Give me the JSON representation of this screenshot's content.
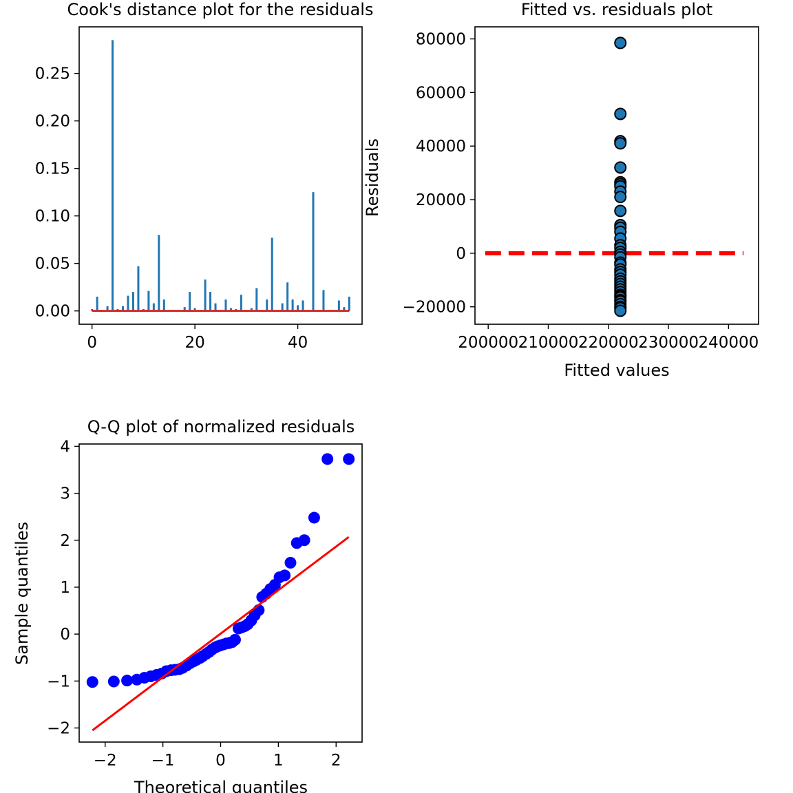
{
  "chart_data": [
    {
      "type": "bar",
      "title": "Cook's distance plot for the residuals",
      "xlabel": "",
      "ylabel": "",
      "xlim": [
        -2.5,
        52.5
      ],
      "ylim": [
        -0.014,
        0.299
      ],
      "xticks": [
        0,
        20,
        40
      ],
      "yticks": [
        0.0,
        0.05,
        0.1,
        0.15,
        0.2,
        0.25
      ],
      "ytick_labels": [
        "0.00",
        "0.05",
        "0.10",
        "0.15",
        "0.20",
        "0.25"
      ],
      "bar_color": "#1f77b4",
      "baseline_color": "#d62728",
      "x": [
        0,
        1,
        2,
        3,
        4,
        5,
        6,
        7,
        8,
        9,
        10,
        11,
        12,
        13,
        14,
        15,
        16,
        17,
        18,
        19,
        20,
        21,
        22,
        23,
        24,
        25,
        26,
        27,
        28,
        29,
        30,
        31,
        32,
        33,
        34,
        35,
        36,
        37,
        38,
        39,
        40,
        41,
        42,
        43,
        44,
        45,
        46,
        47,
        48,
        49,
        50
      ],
      "values": [
        0.002,
        0.015,
        0.001,
        0.005,
        0.285,
        0.002,
        0.005,
        0.016,
        0.02,
        0.047,
        0.002,
        0.021,
        0.008,
        0.08,
        0.012,
        0.001,
        0.001,
        0.001,
        0.004,
        0.02,
        0.003,
        0.001,
        0.033,
        0.02,
        0.008,
        0.001,
        0.012,
        0.003,
        0.002,
        0.017,
        0.001,
        0.003,
        0.024,
        0.001,
        0.012,
        0.077,
        0.001,
        0.008,
        0.03,
        0.012,
        0.006,
        0.011,
        0.001,
        0.125,
        0.001,
        0.022,
        0.001,
        0.001,
        0.011,
        0.004,
        0.015
      ]
    },
    {
      "type": "scatter",
      "title": "Fitted vs. residuals plot",
      "xlabel": "Fitted values",
      "ylabel": "Residuals",
      "xlim": [
        199500,
        24500
      ],
      "ylim": [
        -26500,
        84500
      ],
      "xticks": [
        200000,
        210000,
        220000,
        230000,
        240000
      ],
      "xtick_labels": [
        "200000",
        "210000",
        "220000",
        "230000",
        "240000"
      ],
      "yticks": [
        -20000,
        0,
        20000,
        40000,
        60000,
        80000
      ],
      "ytick_labels": [
        "−20000",
        "0",
        "20000",
        "40000",
        "60000",
        "80000"
      ],
      "point_color": "#1f77b4",
      "reference_line": {
        "y": 0,
        "x_from": 199500,
        "x_to": 242500,
        "color": "#ff0000",
        "style": "dashed"
      },
      "x_value": 222000,
      "y": [
        78500,
        52000,
        41800,
        41000,
        32000,
        26500,
        25800,
        25000,
        23000,
        21000,
        15800,
        10500,
        9500,
        8000,
        5500,
        3000,
        2000,
        500,
        -500,
        -1500,
        -3500,
        -4200,
        -6000,
        -7000,
        -8000,
        -9500,
        -10500,
        -11500,
        -12500,
        -13500,
        -14500,
        -15500,
        -16000,
        -16500,
        -17500,
        -18000,
        -19000,
        -20000,
        -20500,
        -21500
      ]
    },
    {
      "type": "scatter",
      "title": "Q-Q plot of normalized residuals",
      "xlabel": "Theoretical quantiles",
      "ylabel": "Sample quantiles",
      "xlim": [
        -2.45,
        2.45
      ],
      "ylim": [
        -2.3,
        4.05
      ],
      "xticks": [
        -2,
        -1,
        0,
        1,
        2
      ],
      "xtick_labels": [
        "−2",
        "−1",
        "0",
        "1",
        "2"
      ],
      "yticks": [
        -2,
        -1,
        0,
        1,
        2,
        3,
        4
      ],
      "ytick_labels": [
        "−2",
        "−1",
        "0",
        "1",
        "2",
        "3",
        "4"
      ],
      "point_color": "#0000ff",
      "fit_line": {
        "x": [
          -2.22,
          2.22
        ],
        "y": [
          -2.05,
          2.07
        ],
        "color": "#ff0000"
      },
      "x": [
        -2.22,
        -1.85,
        -1.62,
        -1.45,
        -1.32,
        -1.21,
        -1.11,
        -1.02,
        -0.94,
        -0.86,
        -0.79,
        -0.72,
        -0.66,
        -0.59,
        -0.53,
        -0.47,
        -0.42,
        -0.36,
        -0.31,
        -0.25,
        -0.2,
        -0.15,
        -0.1,
        -0.05,
        0.0,
        0.05,
        0.1,
        0.15,
        0.2,
        0.25,
        0.31,
        0.36,
        0.42,
        0.47,
        0.53,
        0.59,
        0.66,
        0.72,
        0.79,
        0.86,
        0.94,
        1.02,
        1.11,
        1.21,
        1.32,
        1.45,
        1.62,
        1.85,
        2.22
      ],
      "y": [
        -1.02,
        -1.01,
        -0.99,
        -0.97,
        -0.93,
        -0.9,
        -0.87,
        -0.84,
        -0.79,
        -0.77,
        -0.76,
        -0.75,
        -0.72,
        -0.67,
        -0.62,
        -0.58,
        -0.55,
        -0.51,
        -0.47,
        -0.42,
        -0.38,
        -0.33,
        -0.29,
        -0.26,
        -0.24,
        -0.22,
        -0.2,
        -0.19,
        -0.17,
        -0.12,
        0.12,
        0.14,
        0.17,
        0.21,
        0.29,
        0.4,
        0.51,
        0.79,
        0.86,
        0.96,
        1.05,
        1.21,
        1.25,
        1.52,
        1.94,
        2.0,
        2.48,
        3.73,
        3.73
      ]
    }
  ]
}
